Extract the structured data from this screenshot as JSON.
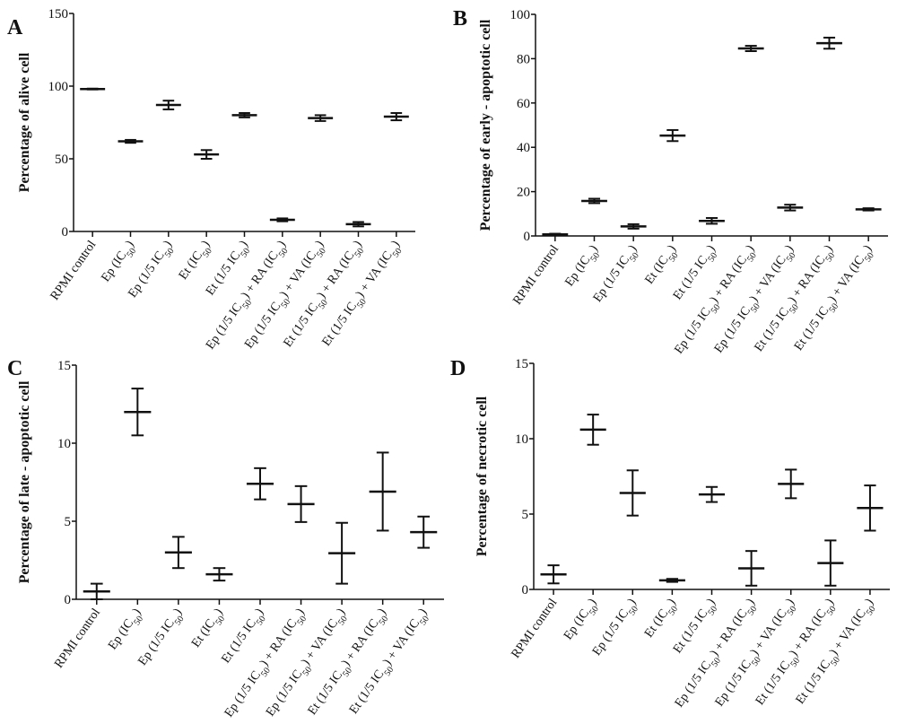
{
  "chart_data": [
    {
      "type": "scatter",
      "panel_label": "A",
      "ylabel": "Percentage of alive cell",
      "ylim": [
        0,
        150
      ],
      "yticks": [
        0,
        50,
        100,
        150
      ],
      "categories": [
        "RPMI control",
        "Ep (IC50)",
        "Ep (1/5 IC50)",
        "Et (IC50)",
        "Et (1/5 IC50)",
        "Ep (1/5 IC50) + RA (IC50)",
        "Ep (1/5 IC50) + VA (IC50)",
        "Et (1/5 IC50) + RA (IC50)",
        "Et (1/5 IC50) + VA (IC50)"
      ],
      "values": [
        98,
        62,
        87,
        53,
        80,
        8,
        78,
        5,
        79
      ],
      "errors": [
        0.3,
        1,
        3,
        3,
        1.5,
        1,
        2,
        1.5,
        2.5
      ]
    },
    {
      "type": "scatter",
      "panel_label": "B",
      "ylabel": "Percentage of early - apoptotic cell",
      "ylim": [
        0,
        100
      ],
      "yticks": [
        0,
        20,
        40,
        60,
        80,
        100
      ],
      "categories": [
        "RPMI control",
        "Ep (IC50)",
        "Ep (1/5 IC50)",
        "Et (IC50)",
        "Et (1/5 IC50)",
        "Ep (1/5 IC50) + RA (IC50)",
        "Ep (1/5 IC50) + VA (IC50)",
        "Et (1/5 IC50) + RA (IC50)",
        "Et (1/5 IC50) + VA (IC50)"
      ],
      "values": [
        0.7,
        15.8,
        4.3,
        45.3,
        6.8,
        84.6,
        12.8,
        87,
        12
      ],
      "errors": [
        0.3,
        1,
        1,
        2.5,
        1.3,
        1.2,
        1.3,
        2.5,
        0.5
      ]
    },
    {
      "type": "scatter",
      "panel_label": "C",
      "ylabel": "Percentage of  late - apoptotic cell",
      "ylim": [
        0,
        15
      ],
      "yticks": [
        0,
        5,
        10,
        15
      ],
      "categories": [
        "RPMI control",
        "Ep (IC50)",
        "Ep (1/5 IC50)",
        "Et (IC50)",
        "Et (1/5 IC50)",
        "Ep (1/5 IC50) + RA (IC50)",
        "Ep (1/5 IC50) + VA (IC50)",
        "Et (1/5 IC50) + RA (IC50)",
        "Et (1/5 IC50) + VA (IC50)"
      ],
      "values": [
        0.5,
        12,
        3,
        1.6,
        7.4,
        6.1,
        2.95,
        6.9,
        4.3
      ],
      "errors": [
        0.5,
        1.5,
        1,
        0.4,
        1,
        1.15,
        1.95,
        2.5,
        1
      ]
    },
    {
      "type": "scatter",
      "panel_label": "D",
      "ylabel": "Percentage of necrotic cell",
      "ylim": [
        0,
        15
      ],
      "yticks": [
        0,
        5,
        10,
        15
      ],
      "categories": [
        "RPMI control",
        "Ep (IC50)",
        "Ep (1/5 IC50)",
        "Et (IC50)",
        "Et (1/5 IC50)",
        "Ep (1/5 IC50) + RA (IC50)",
        "Ep (1/5 IC50) + VA (IC50)",
        "Et (1/5 IC50) + RA (IC50)",
        "Et (1/5 IC50) + VA (IC50)"
      ],
      "values": [
        1.0,
        10.6,
        6.4,
        0.6,
        6.3,
        1.4,
        7.0,
        1.75,
        5.4
      ],
      "errors": [
        0.6,
        1,
        1.5,
        0.1,
        0.5,
        1.15,
        0.95,
        1.5,
        1.5
      ]
    }
  ]
}
